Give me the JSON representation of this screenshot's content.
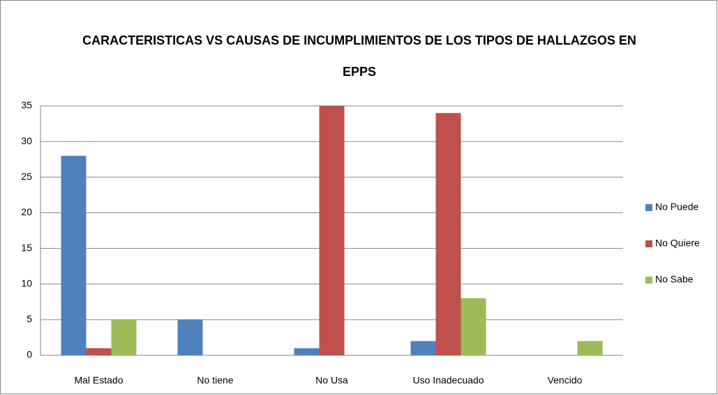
{
  "chart_data": {
    "type": "bar",
    "title": "CARACTERISTICAS VS CAUSAS DE  INCUMPLIMIENTOS DE LOS TIPOS DE HALLAZGOS EN EPPS",
    "categories": [
      "Mal Estado",
      "No tiene",
      "No Usa",
      "Uso Inadecuado",
      "Vencido"
    ],
    "series": [
      {
        "name": "No Puede",
        "color": "#4f81bd",
        "values": [
          28,
          5,
          1,
          2,
          0
        ]
      },
      {
        "name": "No Quiere",
        "color": "#c0504d",
        "values": [
          1,
          0,
          35,
          34,
          0
        ]
      },
      {
        "name": "No Sabe",
        "color": "#9bbb59",
        "values": [
          5,
          0,
          0,
          8,
          2
        ]
      }
    ],
    "ylim": [
      0,
      35
    ],
    "yticks": [
      0,
      5,
      10,
      15,
      20,
      25,
      30,
      35
    ],
    "grid": true,
    "legend": "right"
  }
}
